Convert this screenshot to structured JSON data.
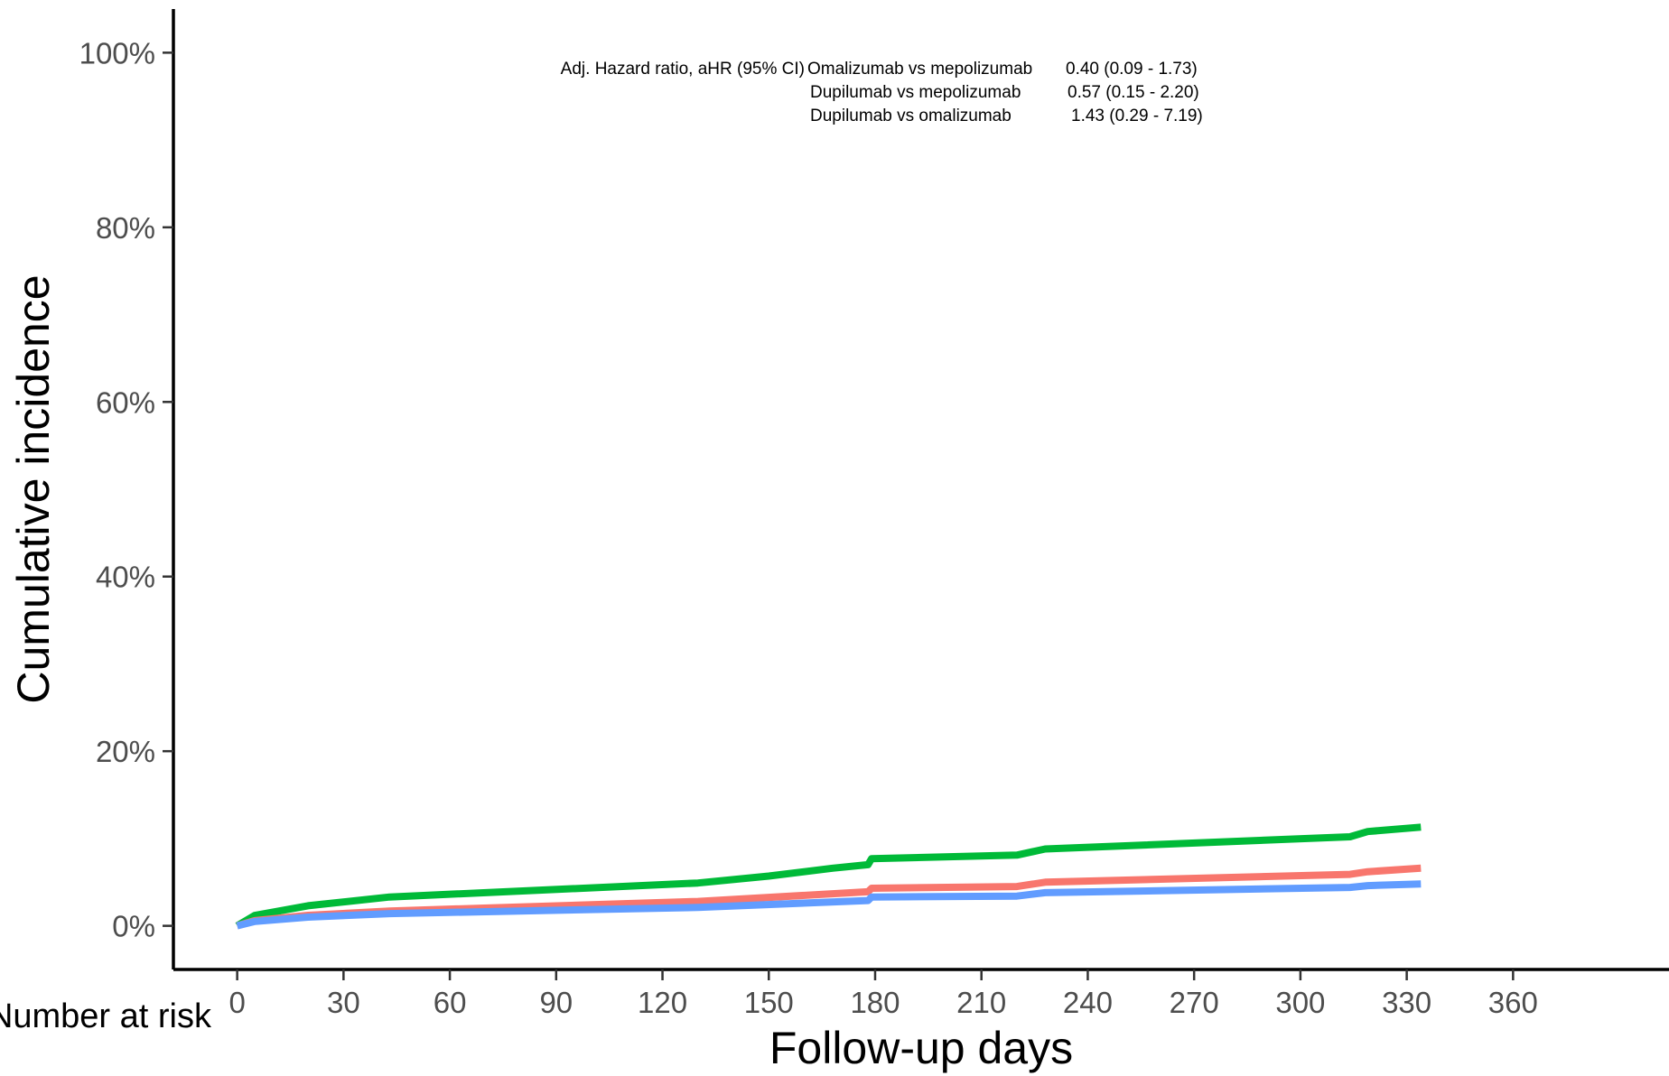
{
  "chart_data": {
    "type": "line",
    "xlabel": "Follow-up days",
    "ylabel": "Cumulative incidence",
    "risk_table_label": "Number at risk",
    "xlim": [
      -18,
      404
    ],
    "ylim": [
      -5,
      105
    ],
    "xticks": [
      0,
      30,
      60,
      90,
      120,
      150,
      180,
      210,
      240,
      270,
      300,
      330,
      360
    ],
    "xtick_labels": [
      "0",
      "30",
      "60",
      "90",
      "120",
      "150",
      "180",
      "210",
      "240",
      "270",
      "300",
      "330",
      "360"
    ],
    "yticks": [
      0,
      20,
      40,
      60,
      80,
      100
    ],
    "ytick_labels": [
      "0%",
      "20%",
      "40%",
      "60%",
      "80%",
      "100%"
    ],
    "grid": false,
    "annotations": [
      {
        "label": "Adj. Hazard ratio, aHR (95% CI)",
        "comparison": "Omalizumab vs mepolizumab",
        "value": "0.40 (0.09 - 1.73)"
      },
      {
        "label": "",
        "comparison": "Dupilumab vs mepolizumab",
        "value": "0.57 (0.15 - 2.20)"
      },
      {
        "label": "",
        "comparison": "Dupilumab vs omalizumab",
        "value": "1.43 (0.29 - 7.19)"
      }
    ],
    "series": [
      {
        "color": "#00BA38",
        "x": [
          0,
          5,
          20,
          43,
          130,
          150,
          168,
          178,
          179,
          220,
          228,
          314,
          319,
          334
        ],
        "y": [
          0,
          1.2,
          2.3,
          3.3,
          4.9,
          5.7,
          6.6,
          7.0,
          7.7,
          8.1,
          8.8,
          10.2,
          10.8,
          11.3
        ]
      },
      {
        "color": "#F8766D",
        "x": [
          0,
          5,
          20,
          43,
          130,
          178,
          179,
          220,
          228,
          314,
          319,
          334
        ],
        "y": [
          0,
          0.6,
          1.2,
          1.7,
          2.8,
          3.9,
          4.3,
          4.5,
          5.0,
          5.9,
          6.2,
          6.6
        ]
      },
      {
        "color": "#619CFF",
        "x": [
          0,
          5,
          20,
          43,
          130,
          178,
          179,
          220,
          228,
          314,
          319,
          334
        ],
        "y": [
          0,
          0.5,
          1.0,
          1.4,
          2.1,
          2.9,
          3.3,
          3.4,
          3.8,
          4.4,
          4.6,
          4.8
        ]
      }
    ]
  }
}
